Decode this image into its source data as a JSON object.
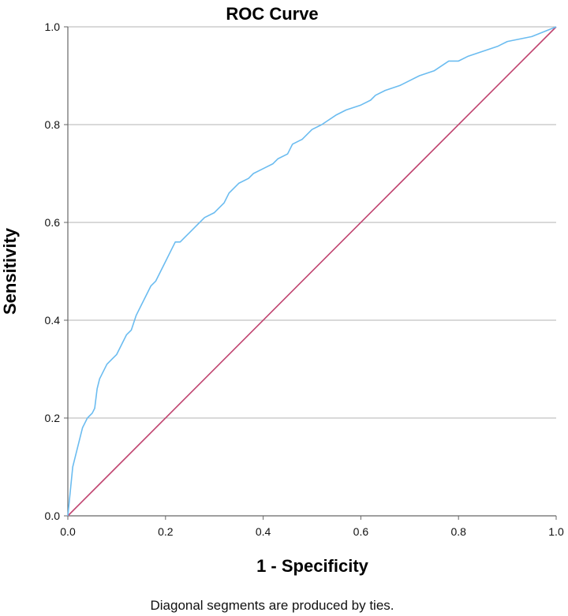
{
  "chart_data": {
    "type": "line",
    "title": "ROC Curve",
    "xlabel": "1 - Specificity",
    "ylabel": "Sensitivity",
    "xlim": [
      0,
      1
    ],
    "ylim": [
      0,
      1
    ],
    "x_ticks": [
      "0.0",
      "0.2",
      "0.4",
      "0.6",
      "0.8",
      "1.0"
    ],
    "y_ticks": [
      "0.0",
      "0.2",
      "0.4",
      "0.6",
      "0.8",
      "1.0"
    ],
    "grid": "horizontal",
    "footnote": "Diagonal segments are produced by ties.",
    "series": [
      {
        "color": "#6bbcf0",
        "x": [
          0.0,
          0.003,
          0.006,
          0.01,
          0.015,
          0.02,
          0.025,
          0.03,
          0.035,
          0.04,
          0.05,
          0.055,
          0.06,
          0.065,
          0.07,
          0.08,
          0.09,
          0.1,
          0.11,
          0.12,
          0.13,
          0.14,
          0.15,
          0.16,
          0.17,
          0.18,
          0.19,
          0.2,
          0.21,
          0.22,
          0.23,
          0.24,
          0.25,
          0.26,
          0.27,
          0.28,
          0.3,
          0.32,
          0.33,
          0.35,
          0.37,
          0.38,
          0.4,
          0.42,
          0.43,
          0.45,
          0.46,
          0.48,
          0.5,
          0.52,
          0.55,
          0.57,
          0.6,
          0.62,
          0.63,
          0.65,
          0.68,
          0.7,
          0.72,
          0.75,
          0.78,
          0.8,
          0.82,
          0.85,
          0.88,
          0.9,
          0.95,
          1.0
        ],
        "y": [
          0.0,
          0.03,
          0.06,
          0.1,
          0.12,
          0.14,
          0.16,
          0.18,
          0.19,
          0.2,
          0.21,
          0.22,
          0.26,
          0.28,
          0.29,
          0.31,
          0.32,
          0.33,
          0.35,
          0.37,
          0.38,
          0.41,
          0.43,
          0.45,
          0.47,
          0.48,
          0.5,
          0.52,
          0.54,
          0.56,
          0.56,
          0.57,
          0.58,
          0.59,
          0.6,
          0.61,
          0.62,
          0.64,
          0.66,
          0.68,
          0.69,
          0.7,
          0.71,
          0.72,
          0.73,
          0.74,
          0.76,
          0.77,
          0.79,
          0.8,
          0.82,
          0.83,
          0.84,
          0.85,
          0.86,
          0.87,
          0.88,
          0.89,
          0.9,
          0.91,
          0.93,
          0.93,
          0.94,
          0.95,
          0.96,
          0.97,
          0.98,
          1.0
        ]
      },
      {
        "color": "#c0436f",
        "x": [
          0,
          1
        ],
        "y": [
          0,
          1
        ]
      }
    ]
  }
}
